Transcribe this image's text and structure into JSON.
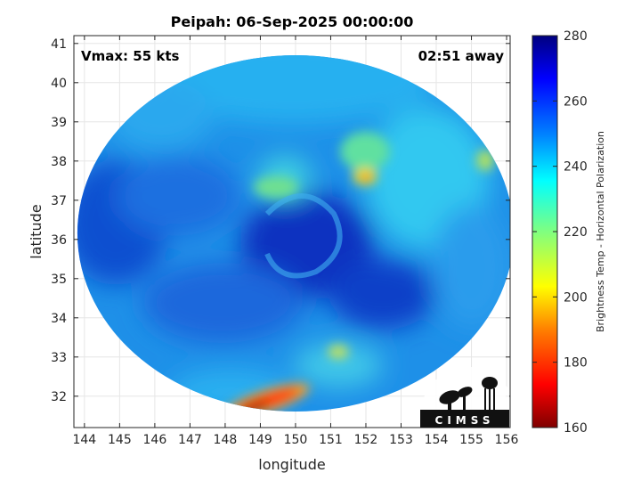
{
  "chart_data": {
    "type": "heatmap",
    "title": "Peipah: 06-Sep-2025 00:00:00",
    "xlabel": "longitude",
    "ylabel": "latitude",
    "xlim": [
      143.7,
      156.1
    ],
    "ylim": [
      31.2,
      41.2
    ],
    "xticks": [
      144,
      145,
      146,
      147,
      148,
      149,
      150,
      151,
      152,
      153,
      154,
      155,
      156
    ],
    "yticks": [
      32,
      33,
      34,
      35,
      36,
      37,
      38,
      39,
      40,
      41
    ],
    "grid": true,
    "annotations": {
      "vmax": "Vmax: 55 kts",
      "time_offset": "02:51 away"
    },
    "colorbar": {
      "label": "Brightness Temp - Horizontal Polarization",
      "min": 160,
      "max": 280,
      "ticks": [
        160,
        180,
        200,
        220,
        240,
        260,
        280
      ],
      "colormap": "jet"
    },
    "swath": {
      "shape": "circle",
      "center": [
        150.0,
        36.2
      ],
      "features": [
        {
          "name": "cold-core",
          "lon": 149.4,
          "lat": 36.0,
          "tb": 272
        },
        {
          "name": "warm-band-south",
          "lon": 148.7,
          "lat": 31.7,
          "tb": 170
        },
        {
          "name": "warm-spot-east",
          "lon": 151.9,
          "lat": 37.6,
          "tb": 205
        },
        {
          "name": "warm-spot-southeast",
          "lon": 150.8,
          "lat": 33.1,
          "tb": 222
        }
      ]
    }
  },
  "logo": {
    "text": "CIMSS"
  }
}
